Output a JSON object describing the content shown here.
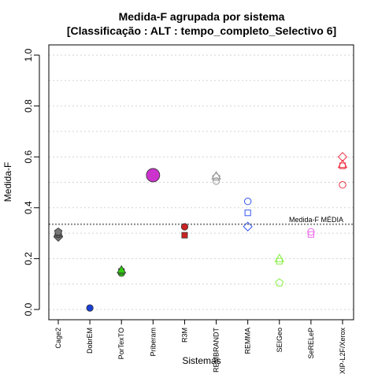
{
  "chart_data": {
    "type": "scatter",
    "title": "Medida-F agrupada por sistema",
    "subtitle": "[Classificação : ALT : tempo_completo_Selectivo 6]",
    "xlabel": "Sistemas",
    "ylabel": "Medida-F",
    "ylim": [
      0,
      1
    ],
    "yticks": [
      "0.0",
      "0.2",
      "0.4",
      "0.6",
      "0.8",
      "1.0"
    ],
    "grid": "horizontal dotted",
    "categories": [
      "Cage2",
      "DobrEM",
      "PorTexTO",
      "Priberam",
      "R3M",
      "REMBRANDT",
      "REMMA",
      "SEIGeo",
      "SeRELeP",
      "XIP-L2F/Xerox"
    ],
    "reference_line": {
      "label": "Medida-F MÉDIA",
      "value": 0.335
    },
    "series": [
      {
        "category": "Cage2",
        "color": "#777777",
        "points": [
          {
            "y": 0.285,
            "shape": "diamond",
            "filled": true
          },
          {
            "y": 0.295,
            "shape": "circle",
            "filled": true
          },
          {
            "y": 0.3,
            "shape": "triangle",
            "filled": true
          },
          {
            "y": 0.305,
            "shape": "pentagon",
            "filled": true
          }
        ]
      },
      {
        "category": "DobrEM",
        "color": "#1a3fd6",
        "points": [
          {
            "y": 0.006,
            "shape": "circle",
            "filled": true
          }
        ]
      },
      {
        "category": "PorTexTO",
        "color": "#33cc11",
        "points": [
          {
            "y": 0.143,
            "shape": "circle",
            "filled": true
          },
          {
            "y": 0.15,
            "shape": "square",
            "filled": true
          },
          {
            "y": 0.155,
            "shape": "triangle",
            "filled": true
          }
        ]
      },
      {
        "category": "Priberam",
        "color": "#cc33cc",
        "points": [
          {
            "y": 0.528,
            "shape": "circle",
            "filled": true,
            "size": "large"
          }
        ]
      },
      {
        "category": "R3M",
        "color": "#cc2222",
        "points": [
          {
            "y": 0.325,
            "shape": "circle",
            "filled": true
          },
          {
            "y": 0.292,
            "shape": "square",
            "filled": true
          }
        ]
      },
      {
        "category": "REMBRANDT",
        "color": "#999999",
        "points": [
          {
            "y": 0.52,
            "shape": "pentagon",
            "filled": false
          },
          {
            "y": 0.525,
            "shape": "triangle",
            "filled": false
          },
          {
            "y": 0.505,
            "shape": "circle",
            "filled": false
          }
        ]
      },
      {
        "category": "REMMA",
        "color": "#3355ee",
        "points": [
          {
            "y": 0.425,
            "shape": "circle",
            "filled": false
          },
          {
            "y": 0.38,
            "shape": "square",
            "filled": false
          },
          {
            "y": 0.326,
            "shape": "diamond",
            "filled": false
          }
        ]
      },
      {
        "category": "SEIGeo",
        "color": "#88ee44",
        "points": [
          {
            "y": 0.2,
            "shape": "triangle",
            "filled": false
          },
          {
            "y": 0.19,
            "shape": "square",
            "filled": false
          },
          {
            "y": 0.105,
            "shape": "pentagon",
            "filled": false
          }
        ]
      },
      {
        "category": "SeRELeP",
        "color": "#ee66ee",
        "points": [
          {
            "y": 0.305,
            "shape": "circle",
            "filled": false
          },
          {
            "y": 0.295,
            "shape": "square",
            "filled": false
          }
        ]
      },
      {
        "category": "XIP-L2F/Xerox",
        "color": "#ee3344",
        "points": [
          {
            "y": 0.6,
            "shape": "diamond",
            "filled": false
          },
          {
            "y": 0.57,
            "shape": "triangle",
            "filled": false
          },
          {
            "y": 0.565,
            "shape": "square",
            "filled": false
          },
          {
            "y": 0.49,
            "shape": "circle",
            "filled": false
          }
        ]
      }
    ]
  }
}
